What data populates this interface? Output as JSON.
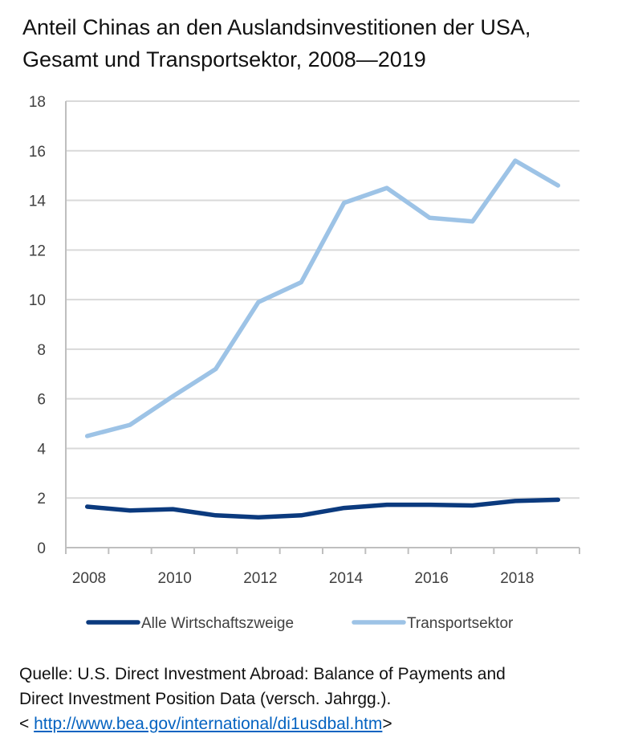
{
  "title": {
    "line1": "Anteil Chinas an den Auslandsinvestitionen der  USA,",
    "line2": "Gesamt und Transportsektor, 2008—2019"
  },
  "chart_data": {
    "type": "line",
    "x": [
      2008,
      2009,
      2010,
      2011,
      2012,
      2013,
      2014,
      2015,
      2016,
      2017,
      2018,
      2019
    ],
    "series": [
      {
        "name": "Alle Wirtschaftszweige",
        "color": "#0b3a7e",
        "values": [
          1.65,
          1.5,
          1.55,
          1.3,
          1.22,
          1.3,
          1.6,
          1.73,
          1.73,
          1.7,
          1.88,
          1.93
        ]
      },
      {
        "name": "Transportsektor",
        "color": "#9dc3e6",
        "values": [
          4.5,
          4.95,
          6.1,
          7.2,
          9.9,
          10.7,
          13.9,
          14.5,
          13.3,
          13.15,
          15.6,
          14.6
        ]
      }
    ],
    "xticks": [
      "2008",
      "2010",
      "2012",
      "2014",
      "2016",
      "2018"
    ],
    "yticks": [
      "0",
      "2",
      "4",
      "6",
      "8",
      "10",
      "12",
      "14",
      "16",
      "18"
    ],
    "ylim": [
      0,
      18
    ],
    "grid": true,
    "legend": "bottom"
  },
  "source": {
    "line1": "Quelle: U.S. Direct Investment Abroad: Balance of Payments and",
    "line2": "Direct Investment Position Data (versch. Jahrgg.).",
    "link_prefix": "< ",
    "link_text": "http://www.bea.gov/international/di1usdbal.htm",
    "link_suffix": ">"
  }
}
